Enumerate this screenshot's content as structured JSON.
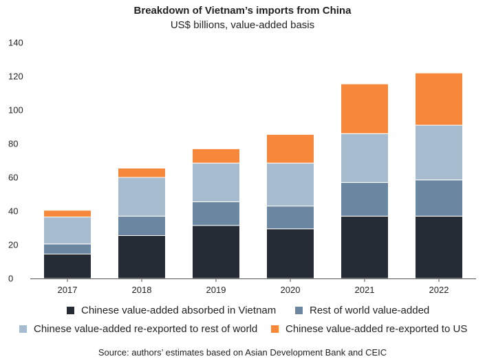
{
  "colors": {
    "absorbed": "#262c35",
    "rest_of_world": "#6b86a0",
    "reexport_row": "#a7bccf",
    "reexport_us": "#f7873a",
    "axis": "#555555"
  },
  "chart_data": {
    "type": "bar",
    "stacked": true,
    "title": "Breakdown of Vietnam’s imports from China",
    "subtitle": "US$ billions, value-added basis",
    "categories": [
      "2017",
      "2018",
      "2019",
      "2020",
      "2021",
      "2022"
    ],
    "ylim": [
      0,
      140
    ],
    "yticks": [
      0,
      20,
      40,
      60,
      80,
      100,
      120,
      140
    ],
    "series": [
      {
        "key": "absorbed",
        "name": "Chinese value-added absorbed in Vietnam",
        "values": [
          14.5,
          25.5,
          31.5,
          29.5,
          37,
          37
        ]
      },
      {
        "key": "rest_of_world",
        "name": "Rest of world value-added",
        "values": [
          6,
          11.5,
          14,
          13.5,
          20,
          21.5
        ]
      },
      {
        "key": "reexport_row",
        "name": "Chinese value-added re-exported to rest of world",
        "values": [
          16,
          23,
          23,
          25.5,
          29,
          32.5
        ]
      },
      {
        "key": "reexport_us",
        "name": "Chinese value-added re-exported to US",
        "values": [
          4,
          5.5,
          8.5,
          17,
          29.5,
          31
        ]
      }
    ],
    "legend_position": "bottom",
    "source": "Source: authors’ estimates based on Asian Development Bank and CEIC"
  }
}
